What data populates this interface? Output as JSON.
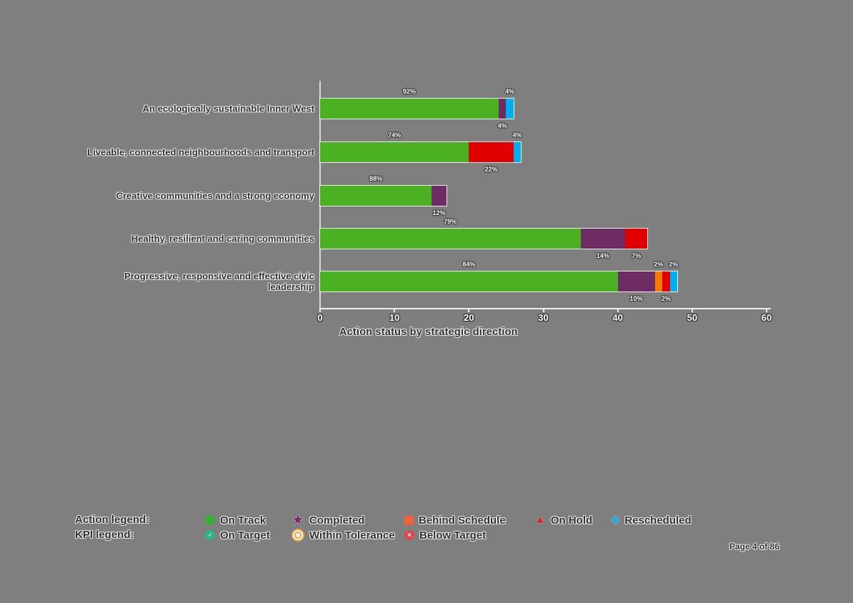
{
  "page": {
    "background_color": "#7f7f7f"
  },
  "chart_data": {
    "type": "bar",
    "orientation": "horizontal",
    "stacked": true,
    "title": "Action status by strategic direction",
    "xlabel": "",
    "ylabel": "",
    "xlim": [
      0,
      60
    ],
    "xticks": [
      0,
      10,
      20,
      30,
      40,
      50,
      60
    ],
    "grid": false,
    "legend_position": "bottom",
    "categories": [
      "An ecologically sustainable Inner West",
      "Liveable, connected neighbourhoods and transport",
      "Creative communities and a strong economy",
      "Healthy, resilient and caring communities",
      "Progressive, responsive and effective civic leadership"
    ],
    "series": [
      {
        "name": "On Track",
        "color": "#4cb122",
        "label_side": "above",
        "values": [
          24,
          20,
          15,
          35,
          40
        ],
        "pct_labels": [
          "92%",
          "74%",
          "88%",
          "79%",
          "84%"
        ]
      },
      {
        "name": "Completed",
        "color": "#6d2d62",
        "label_side": "below",
        "values": [
          1,
          0,
          2,
          6,
          5
        ],
        "pct_labels": [
          "4%",
          "",
          "12%",
          "14%",
          "10%"
        ]
      },
      {
        "name": "Behind Schedule",
        "color": "#f97c00",
        "label_side": "above",
        "values": [
          0,
          0,
          0,
          0,
          1
        ],
        "pct_labels": [
          "",
          "",
          "",
          "",
          "2%"
        ]
      },
      {
        "name": "On Hold",
        "color": "#e00000",
        "label_side": "below",
        "values": [
          0,
          6,
          0,
          3,
          1
        ],
        "pct_labels": [
          "",
          "22%",
          "",
          "7%",
          "2%"
        ]
      },
      {
        "name": "Rescheduled",
        "color": "#00aeef",
        "label_side": "above",
        "values": [
          1,
          1,
          0,
          0,
          1
        ],
        "pct_labels": [
          "4%",
          "4%",
          "",
          "",
          "2%"
        ]
      }
    ]
  },
  "legend": {
    "action": {
      "label": "Action legend:",
      "items": [
        {
          "name": "On Track",
          "icon": "circle-icon",
          "color": "#3bae2f"
        },
        {
          "name": "Completed",
          "icon": "star-icon",
          "color": "#7b2d66"
        },
        {
          "name": "Behind Schedule",
          "icon": "square-icon",
          "color": "#f1603f"
        },
        {
          "name": "On Hold",
          "icon": "triangle-icon",
          "color": "#d92632"
        },
        {
          "name": "Rescheduled",
          "icon": "diamond-icon",
          "color": "#29abe2"
        }
      ]
    },
    "kpi": {
      "label": "KPI legend:",
      "items": [
        {
          "name": "On Target",
          "icon": "check-circle-icon",
          "color": "#2bb58b"
        },
        {
          "name": "Within Tolerance",
          "icon": "bullseye-icon",
          "color": "#f0a13c"
        },
        {
          "name": "Below Target",
          "icon": "x-circle-icon",
          "color": "#e0474c"
        }
      ]
    }
  },
  "footer": {
    "page_label": "Page 4 of 86"
  }
}
